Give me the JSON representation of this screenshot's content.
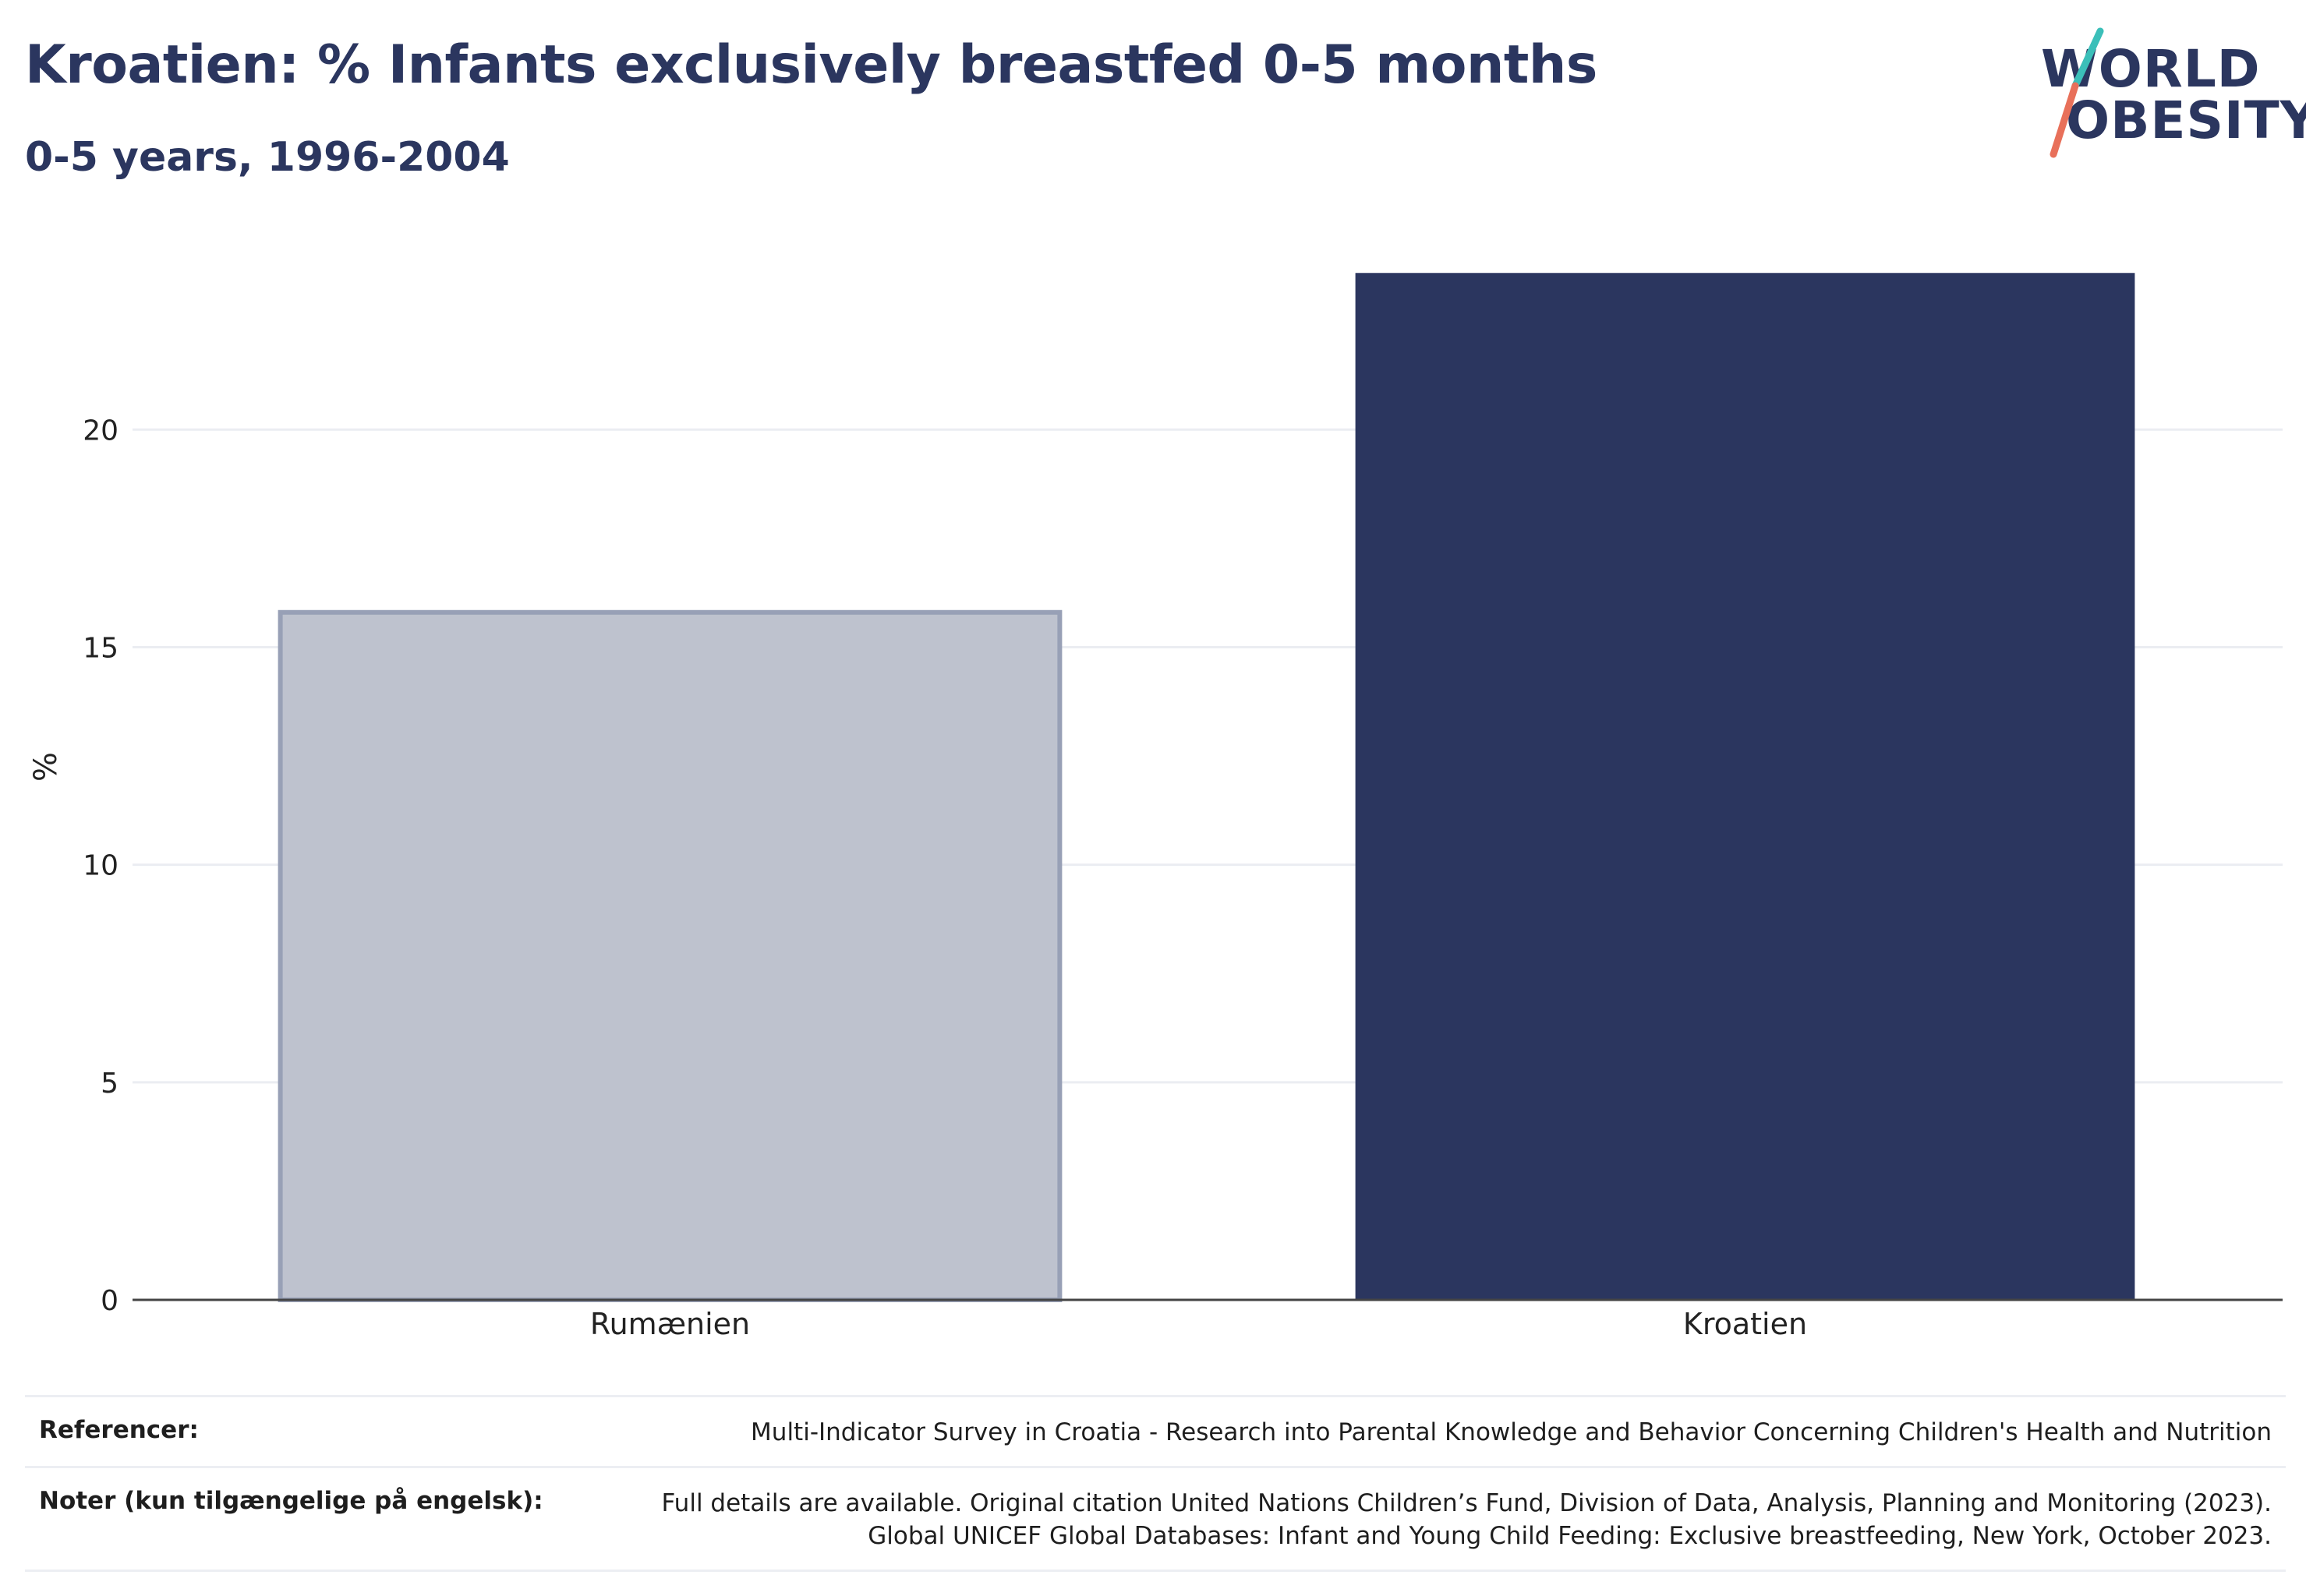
{
  "header": {
    "title": "Kroatien: % Infants exclusively breastfed 0-5 months",
    "subtitle": "0-5 years, 1996-2004"
  },
  "logo": {
    "line1": "WORLD",
    "line2": "OBESITY",
    "accent_colors": [
      "#3bbfb9",
      "#e8705a"
    ]
  },
  "chart_data": {
    "type": "bar",
    "title": "Kroatien: % Infants exclusively breastfed 0-5 months",
    "subtitle": "0-5 years, 1996-2004",
    "xlabel": "",
    "ylabel": "%",
    "categories": [
      "Rumænien",
      "Kroatien"
    ],
    "values": [
      15.8,
      23.6
    ],
    "colors": [
      "#bec2ce",
      "#2b365f"
    ],
    "ylim": [
      0,
      24.5
    ],
    "yticks": [
      0,
      5,
      10,
      15,
      20
    ],
    "grid": true,
    "legend": "none"
  },
  "footer": {
    "references_label": "Referencer:",
    "references_text": "Multi-Indicator Survey in Croatia - Research into Parental Knowledge and Behavior Concerning Children's Health and Nutrition",
    "notes_label": "Noter (kun tilgængelige på engelsk):",
    "notes_line1": "Full details are available. Original citation United Nations Children’s Fund, Division of Data, Analysis, Planning and Monitoring (2023).",
    "notes_line2": "Global UNICEF Global Databases: Infant and Young Child Feeding: Exclusive breastfeeding, New York, October 2023."
  }
}
